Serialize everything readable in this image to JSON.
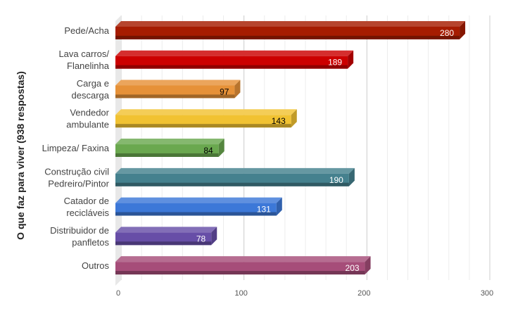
{
  "chart_data": {
    "type": "bar",
    "orientation": "horizontal",
    "style": "3d",
    "ylabel": "O que faz para viver (938 respostas)",
    "xlabel": "",
    "xlim": [
      0,
      300
    ],
    "xticks": [
      0,
      100,
      200,
      300
    ],
    "grid": true,
    "legend": "none",
    "categories": [
      [
        "Pede/Acha"
      ],
      [
        "Lava carros/",
        "Flanelinha"
      ],
      [
        "Carga e",
        "descarga"
      ],
      [
        "Vendedor",
        "ambulante"
      ],
      [
        "Limpeza/ Faxina"
      ],
      [
        "Construção civil",
        "Pedreiro/Pintor"
      ],
      [
        "Catador de",
        "recicláveis"
      ],
      [
        "Distribuidor de",
        "panfletos"
      ],
      [
        "Outros"
      ]
    ],
    "values": [
      280,
      189,
      97,
      143,
      84,
      190,
      131,
      78,
      203
    ],
    "colors": [
      "#a61c00",
      "#cc0000",
      "#e69138",
      "#f1c232",
      "#6aa84f",
      "#45818e",
      "#3c78d8",
      "#674ea7",
      "#a64d79"
    ],
    "value_label_colors": [
      "#ffffff",
      "#ffffff",
      "#000000",
      "#000000",
      "#000000",
      "#ffffff",
      "#ffffff",
      "#ffffff",
      "#ffffff"
    ]
  }
}
